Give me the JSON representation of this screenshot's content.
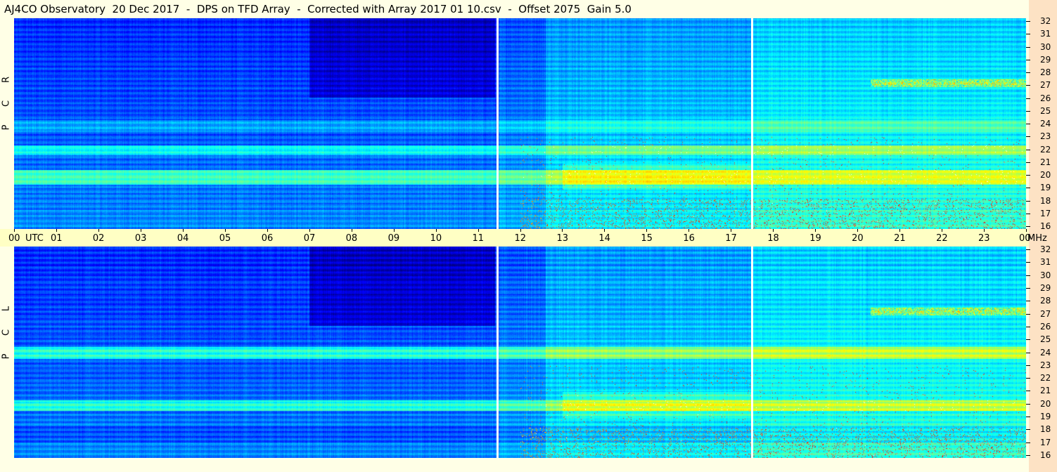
{
  "chart_data": {
    "type": "heatmap",
    "title": "AJ4CO Observatory  20 Dec 2017  -  DPS on TFD Array  -  Corrected with Array 2017 01 10.csv  -  Offset 2075  Gain 5.0",
    "x_unit_label": "UTC",
    "y_unit_label": "MHz",
    "x_ticks": [
      "00",
      "01",
      "02",
      "03",
      "04",
      "05",
      "06",
      "07",
      "08",
      "09",
      "10",
      "11",
      "12",
      "13",
      "14",
      "15",
      "16",
      "17",
      "18",
      "19",
      "20",
      "21",
      "22",
      "23",
      "00"
    ],
    "x_range_hours": [
      0,
      24
    ],
    "y_ticks": [
      "16",
      "17",
      "18",
      "19",
      "20",
      "21",
      "22",
      "23",
      "24",
      "25",
      "26",
      "27",
      "28",
      "29",
      "30",
      "31",
      "32"
    ],
    "y_range_mhz": [
      16,
      32
    ],
    "data_gaps_utc_hours": [
      11.45,
      17.5
    ],
    "colormap": [
      "#00007f",
      "#0000ff",
      "#007fff",
      "#00ffff",
      "#7fff7f",
      "#ffff00",
      "#ff7f00",
      "#ff0000",
      "#ffffff"
    ],
    "panels": [
      {
        "id": "rcp",
        "label": [
          "R",
          "C",
          "P"
        ]
      },
      {
        "id": "lcp",
        "label": [
          "L",
          "C",
          "P"
        ]
      }
    ]
  },
  "colors": {
    "background": "#ffffe6",
    "axis_band": "#ffffc4",
    "scale_strip": "#fde2c4"
  }
}
